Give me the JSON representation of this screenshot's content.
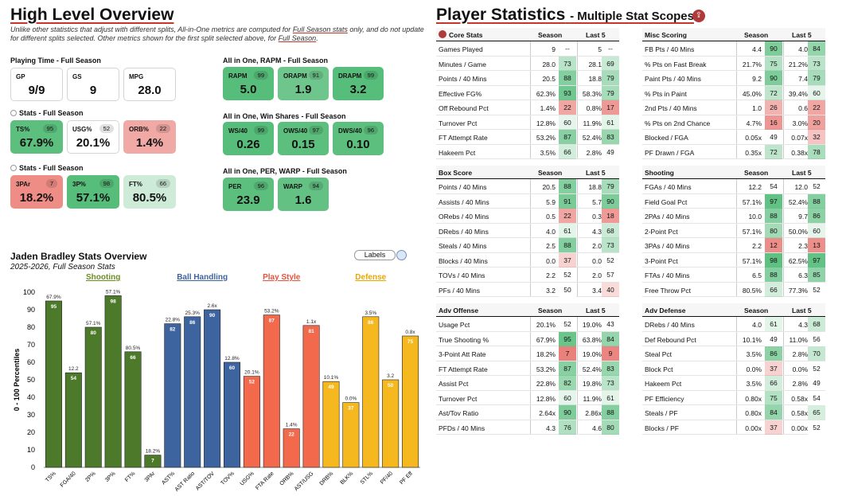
{
  "overview": {
    "title": "High Level Overview",
    "note_lines": [
      "Unlike other statistics that adjust with different splits, All-in-One metrics are computed for ",
      "Full Season stats",
      " only, and do not update",
      "for different splits selected. Other metrics shown for the first split selected above, for ",
      "Full Season",
      "."
    ]
  },
  "playing_time": {
    "label": "Playing Time - Full Season",
    "cards": [
      {
        "label": "GP",
        "value": "9/9"
      },
      {
        "label": "GS",
        "value": "9"
      },
      {
        "label": "MPG",
        "value": "28.0"
      }
    ]
  },
  "stats1": {
    "label": "Stats - Full Season",
    "cards": [
      {
        "label": "TS%",
        "pct": "95",
        "value": "67.9%",
        "color": "#5cbf7e"
      },
      {
        "label": "USG%",
        "pct": "52",
        "value": "20.1%",
        "color": "#ffffff"
      },
      {
        "label": "ORB%",
        "pct": "22",
        "value": "1.4%",
        "color": "#f0a9a5"
      }
    ]
  },
  "stats2": {
    "label": "Stats - Full Season",
    "cards": [
      {
        "label": "3PAr",
        "pct": "7",
        "value": "18.2%",
        "color": "#ee8c86"
      },
      {
        "label": "3P%",
        "pct": "98",
        "value": "57.1%",
        "color": "#57bd7b"
      },
      {
        "label": "FT%",
        "pct": "66",
        "value": "80.5%",
        "color": "#cdebd7"
      }
    ]
  },
  "rapm": {
    "label": "All in One, RAPM - Full Season",
    "cards": [
      {
        "label": "RAPM",
        "pct": "99",
        "value": "5.0",
        "color": "#57bd7b"
      },
      {
        "label": "ORAPM",
        "pct": "91",
        "value": "1.9",
        "color": "#6fc68d"
      },
      {
        "label": "DRAPM",
        "pct": "99",
        "value": "3.2",
        "color": "#57bd7b"
      }
    ]
  },
  "winshares": {
    "label": "All in One, Win Shares - Full Season",
    "cards": [
      {
        "label": "WS/40",
        "pct": "99",
        "value": "0.26",
        "color": "#57bd7b"
      },
      {
        "label": "OWS/40",
        "pct": "97",
        "value": "0.15",
        "color": "#5cbf7e"
      },
      {
        "label": "DWS/40",
        "pct": "96",
        "value": "0.10",
        "color": "#5cbf7e"
      }
    ]
  },
  "per": {
    "label": "All in One, PER, WARP - Full Season",
    "cards": [
      {
        "label": "PER",
        "pct": "96",
        "value": "23.9",
        "color": "#5cbf7e"
      },
      {
        "label": "WARP",
        "pct": "94",
        "value": "1.6",
        "color": "#63c184"
      }
    ]
  },
  "chart_header": {
    "title": "Jaden Bradley Stats Overview",
    "subtitle": "2025-2026, Full Season Stats",
    "labels_btn": "Labels"
  },
  "chart_data": {
    "type": "bar",
    "title": "Jaden Bradley Stats Overview",
    "ylabel": "0 - 100 Percentiles",
    "ylim": [
      0,
      100
    ],
    "yticks": [
      "0",
      "10",
      "20",
      "30",
      "40",
      "50",
      "60",
      "70",
      "80",
      "90",
      "100"
    ],
    "groups": [
      {
        "name": "Shooting",
        "color": "#4c7a2a",
        "text_color": "#6b8e23"
      },
      {
        "name": "Ball Handling",
        "color": "#3e64a0",
        "text_color": "#3e64a0"
      },
      {
        "name": "Play Style",
        "color": "#f26a4b",
        "text_color": "#e8513a"
      },
      {
        "name": "Defense",
        "color": "#f5b81e",
        "text_color": "#e8a800"
      }
    ],
    "bars": [
      {
        "cat": "TS%",
        "value": 95,
        "label": "67.9%",
        "group": 0
      },
      {
        "cat": "FGA/40",
        "value": 54,
        "label": "12.2",
        "group": 0
      },
      {
        "cat": "2P%",
        "value": 80,
        "label": "57.1%",
        "group": 0
      },
      {
        "cat": "3P%",
        "value": 98,
        "label": "57.1%",
        "group": 0
      },
      {
        "cat": "FT%",
        "value": 66,
        "label": "80.5%",
        "group": 0
      },
      {
        "cat": "3PAr",
        "value": 7,
        "label": "18.2%",
        "group": 0
      },
      {
        "cat": "AST%",
        "value": 82,
        "label": "22.8%",
        "group": 1
      },
      {
        "cat": "AST Ratio",
        "value": 86,
        "label": "25.3%",
        "group": 1
      },
      {
        "cat": "AST/TOV",
        "value": 90,
        "label": "2.6x",
        "group": 1
      },
      {
        "cat": "TOV%",
        "value": 60,
        "label": "12.8%",
        "group": 1
      },
      {
        "cat": "USG%",
        "value": 52,
        "label": "20.1%",
        "group": 2
      },
      {
        "cat": "FTA Rate",
        "value": 87,
        "label": "53.2%",
        "group": 2
      },
      {
        "cat": "ORB%",
        "value": 22,
        "label": "1.4%",
        "group": 2
      },
      {
        "cat": "AST/USG",
        "value": 81,
        "label": "1.1x",
        "group": 2
      },
      {
        "cat": "DRB%",
        "value": 49,
        "label": "10.1%",
        "group": 3
      },
      {
        "cat": "BLK%",
        "value": 37,
        "label": "0.0%",
        "group": 3
      },
      {
        "cat": "STL%",
        "value": 86,
        "label": "3.5%",
        "group": 3
      },
      {
        "cat": "PF/40",
        "value": 50,
        "label": "3.2",
        "group": 3
      },
      {
        "cat": "PF Eff",
        "value": 75,
        "label": "0.8x",
        "group": 3
      }
    ]
  },
  "player_stats": {
    "title": "Player Statistics",
    "subtitle": "- Multiple Stat Scopes",
    "tables": [
      {
        "name": "Core Stats",
        "cols": [
          "Season",
          "Last 5"
        ],
        "rows": [
          [
            "Games Played",
            "9",
            "--",
            "5",
            "--"
          ],
          [
            "Minutes / Game",
            "28.0",
            "73",
            "28.1",
            "69"
          ],
          [
            "Points / 40 Mins",
            "20.5",
            "88",
            "18.8",
            "79"
          ],
          [
            "Effective FG%",
            "62.3%",
            "93",
            "58.3%",
            "79"
          ],
          [
            "Off Rebound Pct",
            "1.4%",
            "22",
            "0.8%",
            "17"
          ],
          [
            "Turnover Pct",
            "12.8%",
            "60",
            "11.9%",
            "61"
          ],
          [
            "FT Attempt Rate",
            "53.2%",
            "87",
            "52.4%",
            "83"
          ],
          [
            "Hakeem Pct",
            "3.5%",
            "66",
            "2.8%",
            "49"
          ]
        ]
      },
      {
        "name": "Misc Scoring",
        "cols": [
          "Season",
          "Last 5"
        ],
        "rows": [
          [
            "FB Pts / 40 Mins",
            "4.4",
            "90",
            "4.0",
            "84"
          ],
          [
            "% Pts on Fast Break",
            "21.7%",
            "75",
            "21.2%",
            "73"
          ],
          [
            "Paint Pts / 40 Mins",
            "9.2",
            "90",
            "7.4",
            "79"
          ],
          [
            "% Pts in Paint",
            "45.0%",
            "72",
            "39.4%",
            "60"
          ],
          [
            "2nd Pts / 40 Mins",
            "1.0",
            "26",
            "0.6",
            "22"
          ],
          [
            "% Pts on 2nd Chance",
            "4.7%",
            "16",
            "3.0%",
            "20"
          ],
          [
            "Blocked / FGA",
            "0.05x",
            "49",
            "0.07x",
            "32"
          ],
          [
            "PF Drawn / FGA",
            "0.35x",
            "72",
            "0.38x",
            "78"
          ]
        ]
      },
      {
        "name": "Box Score",
        "cols": [
          "Season",
          "Last 5"
        ],
        "rows": [
          [
            "Points / 40 Mins",
            "20.5",
            "88",
            "18.8",
            "79"
          ],
          [
            "Assists / 40 Mins",
            "5.9",
            "91",
            "5.7",
            "90"
          ],
          [
            "ORebs / 40 Mins",
            "0.5",
            "22",
            "0.3",
            "18"
          ],
          [
            "DRebs / 40 Mins",
            "4.0",
            "61",
            "4.3",
            "68"
          ],
          [
            "Steals / 40 Mins",
            "2.5",
            "88",
            "2.0",
            "73"
          ],
          [
            "Blocks / 40 Mins",
            "0.0",
            "37",
            "0.0",
            "52"
          ],
          [
            "TOVs / 40 Mins",
            "2.2",
            "52",
            "2.0",
            "57"
          ],
          [
            "PFs / 40 Mins",
            "3.2",
            "50",
            "3.4",
            "40"
          ]
        ]
      },
      {
        "name": "Shooting",
        "cols": [
          "Season",
          "Last 5"
        ],
        "rows": [
          [
            "FGAs / 40 Mins",
            "12.2",
            "54",
            "12.0",
            "52"
          ],
          [
            "Field Goal Pct",
            "57.1%",
            "97",
            "52.4%",
            "88"
          ],
          [
            "2PAs / 40 Mins",
            "10.0",
            "88",
            "9.7",
            "86"
          ],
          [
            "2-Point Pct",
            "57.1%",
            "80",
            "50.0%",
            "60"
          ],
          [
            "3PAs / 40 Mins",
            "2.2",
            "12",
            "2.3",
            "13"
          ],
          [
            "3-Point Pct",
            "57.1%",
            "98",
            "62.5%",
            "97"
          ],
          [
            "FTAs / 40 Mins",
            "6.5",
            "88",
            "6.3",
            "85"
          ],
          [
            "Free Throw Pct",
            "80.5%",
            "66",
            "77.3%",
            "52"
          ]
        ]
      },
      {
        "name": "Adv Offense",
        "cols": [
          "Season",
          "Last 5"
        ],
        "rows": [
          [
            "Usage Pct",
            "20.1%",
            "52",
            "19.0%",
            "43"
          ],
          [
            "True Shooting %",
            "67.9%",
            "95",
            "63.8%",
            "84"
          ],
          [
            "3-Point Att Rate",
            "18.2%",
            "7",
            "19.0%",
            "9"
          ],
          [
            "FT Attempt Rate",
            "53.2%",
            "87",
            "52.4%",
            "83"
          ],
          [
            "Assist Pct",
            "22.8%",
            "82",
            "19.8%",
            "73"
          ],
          [
            "Turnover Pct",
            "12.8%",
            "60",
            "11.9%",
            "61"
          ],
          [
            "Ast/Tov Ratio",
            "2.64x",
            "90",
            "2.86x",
            "88"
          ],
          [
            "PFDs / 40 Mins",
            "4.3",
            "76",
            "4.6",
            "80"
          ]
        ]
      },
      {
        "name": "Adv Defense",
        "cols": [
          "Season",
          "Last 5"
        ],
        "rows": [
          [
            "DRebs / 40 Mins",
            "4.0",
            "61",
            "4.3",
            "68"
          ],
          [
            "Def Rebound Pct",
            "10.1%",
            "49",
            "11.0%",
            "56"
          ],
          [
            "Steal Pct",
            "3.5%",
            "86",
            "2.8%",
            "70"
          ],
          [
            "Block Pct",
            "0.0%",
            "37",
            "0.0%",
            "52"
          ],
          [
            "Hakeem Pct",
            "3.5%",
            "66",
            "2.8%",
            "49"
          ],
          [
            "PF Efficiency",
            "0.80x",
            "75",
            "0.58x",
            "54"
          ],
          [
            "Steals / PF",
            "0.80x",
            "84",
            "0.58x",
            "65"
          ],
          [
            "Blocks / PF",
            "0.00x",
            "37",
            "0.00x",
            "52"
          ]
        ]
      }
    ]
  }
}
